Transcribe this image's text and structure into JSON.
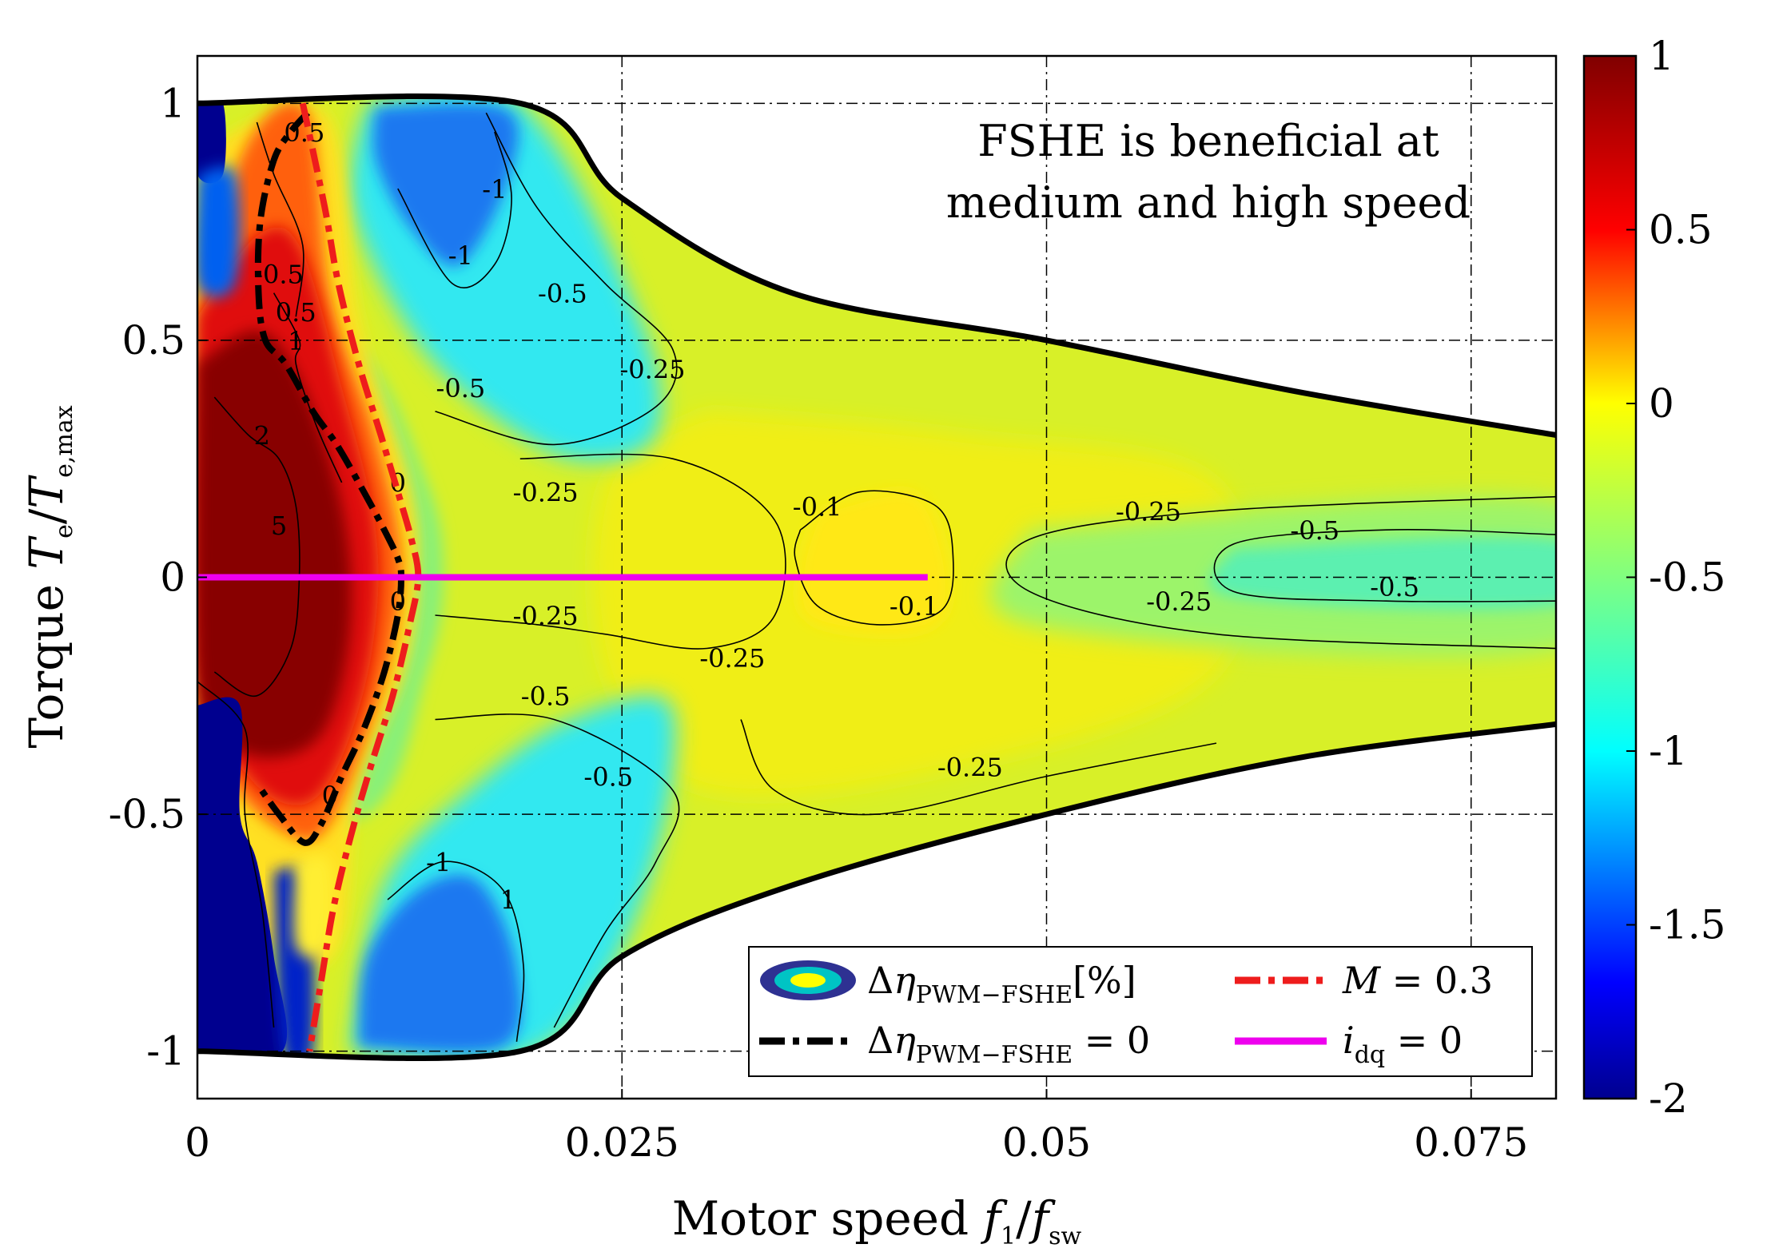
{
  "chart_data": {
    "type": "heatmap",
    "title": "",
    "x": {
      "label_main": "Motor speed",
      "label_var1": "f",
      "label_sub1": "1",
      "label_sep": "/",
      "label_var2": "f",
      "label_sub2": "sw",
      "range": [
        0,
        0.08
      ],
      "ticks": [
        0,
        0.025,
        0.05,
        0.075
      ],
      "tick_labels": [
        "0",
        "0.025",
        "0.05",
        "0.075"
      ]
    },
    "y": {
      "label_main": "Torque",
      "label_var1": "T",
      "label_sub1": "e",
      "label_sep": "/",
      "label_var2": "T",
      "label_sub2": "e,max",
      "range": [
        -1.1,
        1.1
      ],
      "ticks": [
        -1,
        -0.5,
        0,
        0.5,
        1
      ],
      "tick_labels": [
        "-1",
        "-0.5",
        "0",
        "0.5",
        "1"
      ]
    },
    "grid": true,
    "colormap": "jet",
    "colorbar": {
      "range": [
        -2,
        1
      ],
      "ticks": [
        -2,
        -1.5,
        -1,
        -0.5,
        0,
        0.5,
        1
      ],
      "tick_labels": [
        "-2",
        "-1.5",
        "-1",
        "-0.5",
        "0",
        "0.5",
        "1"
      ]
    },
    "annotation": {
      "line1": "FSHE is beneficial at",
      "line2": "medium and high speed"
    },
    "operating_envelope": {
      "constant_torque_until_x": 0.019,
      "upper_limit": [
        [
          0,
          1.0
        ],
        [
          0.019,
          1.0
        ],
        [
          0.025,
          0.8
        ],
        [
          0.035,
          0.6
        ],
        [
          0.05,
          0.5
        ],
        [
          0.065,
          0.39
        ],
        [
          0.08,
          0.3
        ]
      ],
      "lower_limit": [
        [
          0,
          -1.0
        ],
        [
          0.019,
          -1.0
        ],
        [
          0.025,
          -0.8
        ],
        [
          0.035,
          -0.65
        ],
        [
          0.05,
          -0.5
        ],
        [
          0.065,
          -0.38
        ],
        [
          0.08,
          -0.31
        ]
      ]
    },
    "contour_labels": [
      {
        "x": 0.0063,
        "y": 0.92,
        "text": "0.5"
      },
      {
        "x": 0.0175,
        "y": 0.8,
        "text": "-1"
      },
      {
        "x": 0.0155,
        "y": 0.66,
        "text": "-1"
      },
      {
        "x": 0.0048,
        "y": 0.62,
        "text": "-0.5"
      },
      {
        "x": 0.0058,
        "y": 0.54,
        "text": "0.5"
      },
      {
        "x": 0.0058,
        "y": 0.48,
        "text": "1"
      },
      {
        "x": 0.0215,
        "y": 0.58,
        "text": "-0.5"
      },
      {
        "x": 0.0268,
        "y": 0.42,
        "text": "-0.25"
      },
      {
        "x": 0.0155,
        "y": 0.38,
        "text": "-0.5"
      },
      {
        "x": 0.0038,
        "y": 0.28,
        "text": "2"
      },
      {
        "x": 0.0118,
        "y": 0.18,
        "text": "0"
      },
      {
        "x": 0.0205,
        "y": 0.16,
        "text": "-0.25"
      },
      {
        "x": 0.0048,
        "y": 0.09,
        "text": "5"
      },
      {
        "x": 0.0365,
        "y": 0.13,
        "text": "-0.1"
      },
      {
        "x": 0.056,
        "y": 0.12,
        "text": "-0.25"
      },
      {
        "x": 0.0658,
        "y": 0.08,
        "text": "-0.5"
      },
      {
        "x": 0.0118,
        "y": -0.07,
        "text": "0"
      },
      {
        "x": 0.0422,
        "y": -0.08,
        "text": "-0.1"
      },
      {
        "x": 0.0578,
        "y": -0.07,
        "text": "-0.25"
      },
      {
        "x": 0.0705,
        "y": -0.04,
        "text": "-0.5"
      },
      {
        "x": 0.0205,
        "y": -0.1,
        "text": "-0.25"
      },
      {
        "x": 0.0315,
        "y": -0.19,
        "text": "-0.25"
      },
      {
        "x": 0.0205,
        "y": -0.27,
        "text": "-0.5"
      },
      {
        "x": 0.0242,
        "y": -0.44,
        "text": "-0.5"
      },
      {
        "x": 0.0078,
        "y": -0.48,
        "text": "0"
      },
      {
        "x": 0.0455,
        "y": -0.42,
        "text": "-0.25"
      },
      {
        "x": 0.0142,
        "y": -0.62,
        "text": "-1"
      },
      {
        "x": 0.0183,
        "y": -0.7,
        "text": "1"
      }
    ],
    "series": [
      {
        "name": "Δη_PWM−FSHE [%]",
        "kind": "filled-contour",
        "color": "#2c3e9c"
      },
      {
        "name": "Δη_PWM−FSHE = 0",
        "kind": "line",
        "style": "dash-dot",
        "color": "#000000",
        "x": [
          0.0065,
          0.0055,
          0.0045,
          0.0037,
          0.0036,
          0.004,
          0.0052,
          0.0068,
          0.0082,
          0.0098,
          0.011,
          0.0118,
          0.012,
          0.0118,
          0.011,
          0.0098,
          0.0085,
          0.0073,
          0.0063,
          0.0048,
          0.0036
        ],
        "y": [
          0.98,
          0.94,
          0.88,
          0.75,
          0.6,
          0.5,
          0.45,
          0.35,
          0.28,
          0.18,
          0.1,
          0.04,
          0.0,
          -0.08,
          -0.2,
          -0.32,
          -0.42,
          -0.52,
          -0.56,
          -0.5,
          -0.44
        ]
      },
      {
        "name": "M = 0.3",
        "kind": "line",
        "style": "dash-dot",
        "color": "#ee1c1c",
        "x": [
          0.0062,
          0.0075,
          0.0083,
          0.0095,
          0.0108,
          0.0118,
          0.0126,
          0.013,
          0.0125,
          0.0115,
          0.0102,
          0.009,
          0.008,
          0.0073,
          0.0066
        ],
        "y": [
          1.0,
          0.78,
          0.62,
          0.45,
          0.3,
          0.18,
          0.08,
          0.0,
          -0.1,
          -0.25,
          -0.4,
          -0.55,
          -0.7,
          -0.85,
          -1.0
        ]
      },
      {
        "name": "i_dq = 0",
        "kind": "line",
        "style": "solid",
        "color": "#ee00ee",
        "x": [
          0,
          0.043
        ],
        "y": [
          0,
          0
        ]
      }
    ],
    "legend": {
      "position": "bottom-right",
      "entries": [
        {
          "pre": "Δ",
          "var": "η",
          "sub": "PWM−FSHE",
          "post": "[%]"
        },
        {
          "pre": "",
          "var": "M",
          "sub": "",
          "post": " = 0.3"
        },
        {
          "pre": "Δ",
          "var": "η",
          "sub": "PWM−FSHE",
          "post": " = 0"
        },
        {
          "pre": "",
          "var": "i",
          "sub": "dq",
          "post": " = 0"
        }
      ]
    }
  }
}
